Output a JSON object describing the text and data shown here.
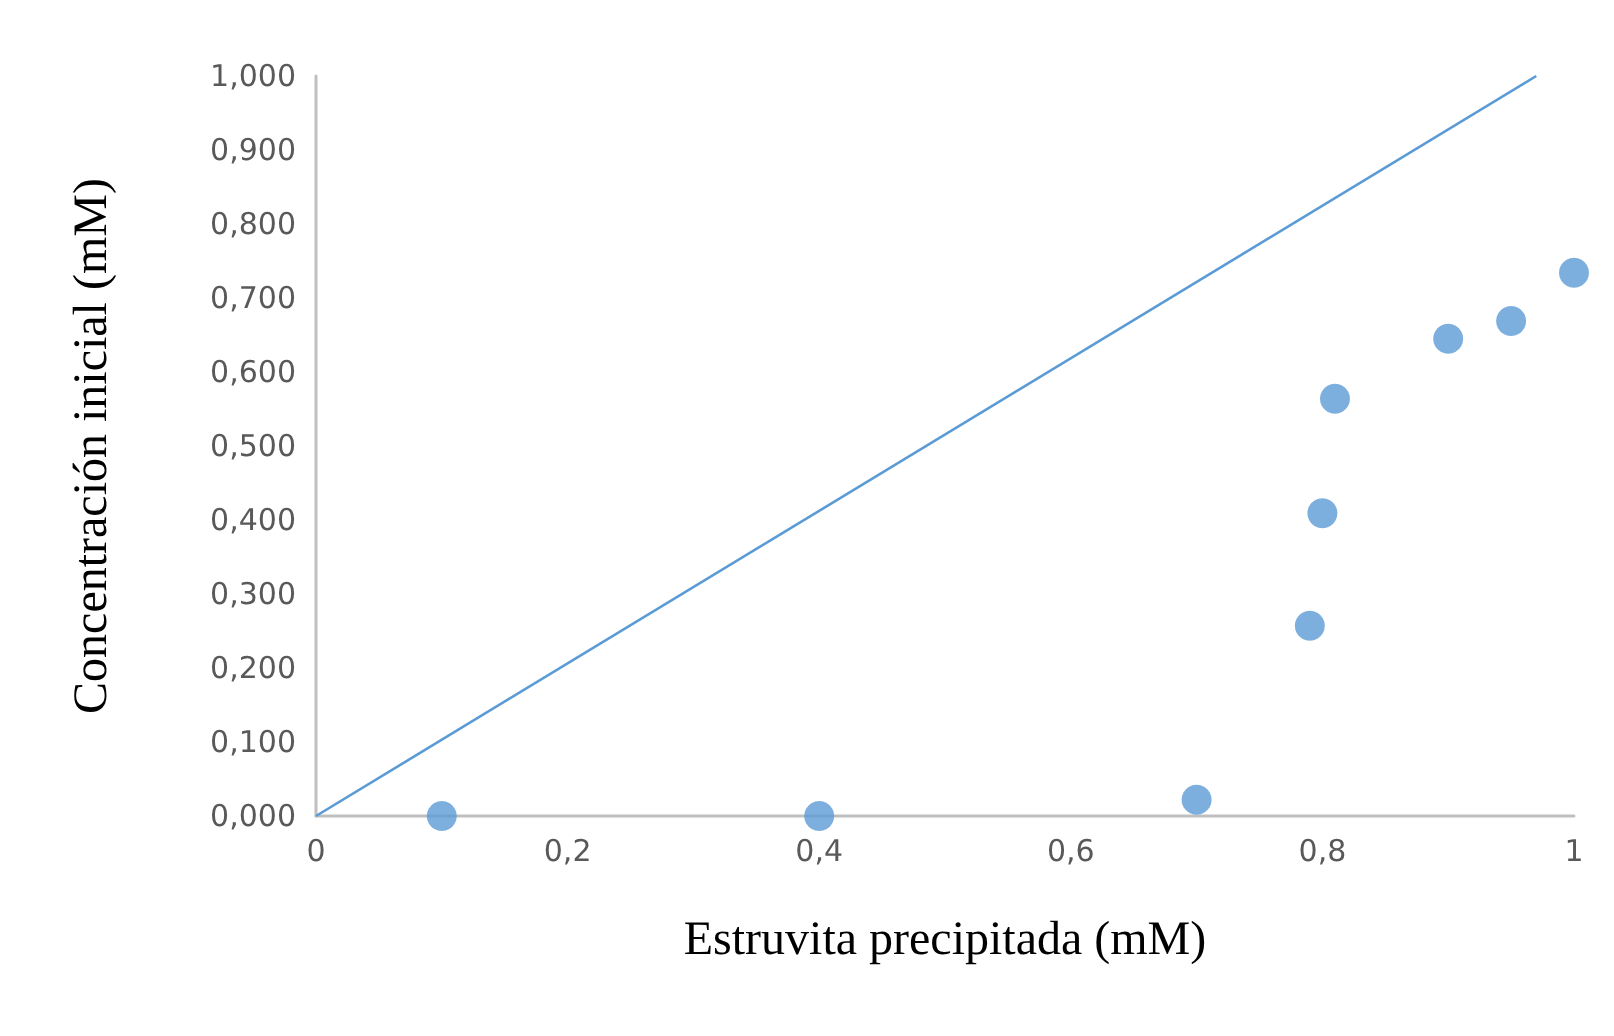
{
  "chart_data": {
    "type": "scatter",
    "xlabel": "Estruvita precipitada (mM)",
    "ylabel": "Concentración inicial (mM)",
    "xlim": [
      0,
      1
    ],
    "ylim": [
      0,
      1
    ],
    "xticks": [
      0,
      {
        "value": 0.2,
        "label": "0,2"
      },
      {
        "value": 0.4,
        "label": "0,4"
      },
      {
        "value": 0.6,
        "label": "0,6"
      },
      {
        "value": 0.8,
        "label": "0,8"
      },
      1
    ],
    "yticks": [
      {
        "value": 0,
        "label": "0,000"
      },
      {
        "value": 0.1,
        "label": "0,100"
      },
      {
        "value": 0.2,
        "label": "0,200"
      },
      {
        "value": 0.3,
        "label": "0,300"
      },
      {
        "value": 0.4,
        "label": "0,400"
      },
      {
        "value": 0.5,
        "label": "0,500"
      },
      {
        "value": 0.6,
        "label": "0,600"
      },
      {
        "value": 0.7,
        "label": "0,700"
      },
      {
        "value": 0.8,
        "label": "0,800"
      },
      {
        "value": 0.9,
        "label": "0,900"
      },
      {
        "value": 1,
        "label": "1,000"
      }
    ],
    "grid": false,
    "marker": "circle",
    "series": [
      {
        "color": "#5b9bd5",
        "x": [
          0.1,
          0.4,
          0.7,
          0.79,
          0.8,
          0.81,
          0.9,
          0.95,
          1.0
        ],
        "values": [
          0,
          0,
          0.022,
          0.257,
          0.409,
          0.564,
          0.645,
          0.669,
          0.734
        ]
      },
      {
        "type": "line",
        "color": "#5b9bd5",
        "marker": "none",
        "line_style": "solid",
        "x": [
          0,
          0.97
        ],
        "values": [
          0,
          1.0
        ]
      }
    ]
  }
}
